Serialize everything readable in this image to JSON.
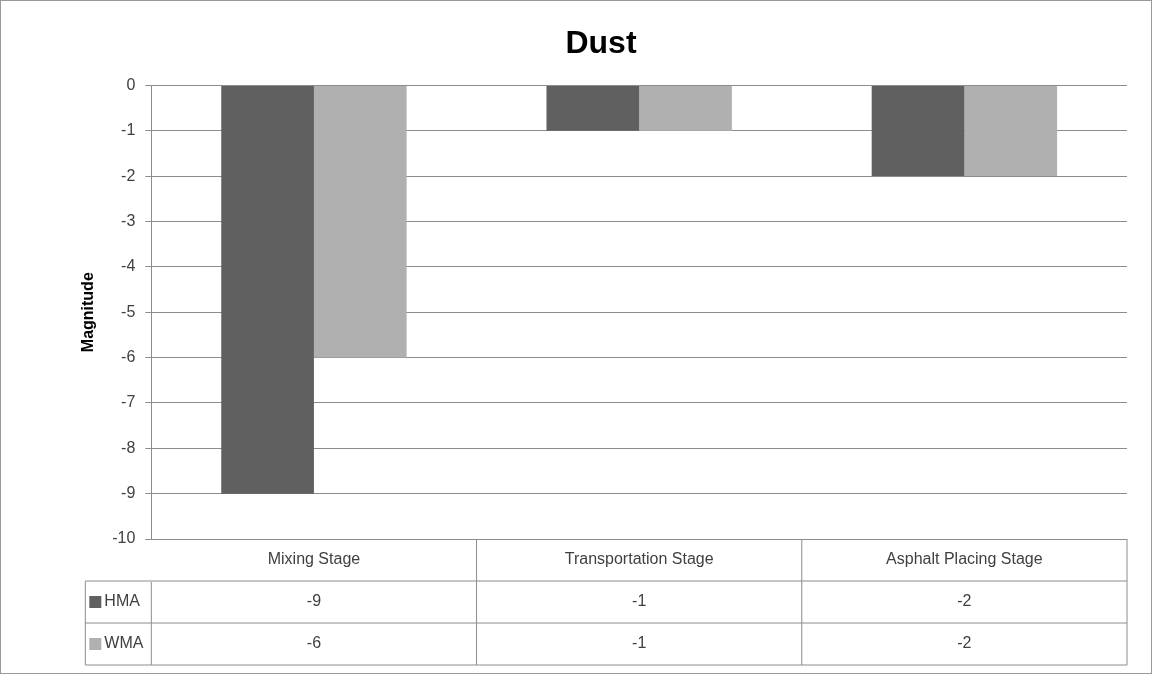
{
  "chart_data": {
    "type": "bar",
    "title": "Dust",
    "ylabel": "Magnitude",
    "categories": [
      "Mixing Stage",
      "Transportation Stage",
      "Asphalt Placing Stage"
    ],
    "series": [
      {
        "name": "HMA",
        "color": "#606060",
        "values": [
          -9,
          -1,
          -2
        ]
      },
      {
        "name": "WMA",
        "color": "#b0b0b0",
        "values": [
          -6,
          -1,
          -2
        ]
      }
    ],
    "ylim": [
      -10,
      0
    ],
    "yticks": [
      0,
      -1,
      -2,
      -3,
      -4,
      -5,
      -6,
      -7,
      -8,
      -9,
      -10
    ],
    "grid": "y",
    "legend": "bottom",
    "data_labels": true
  }
}
